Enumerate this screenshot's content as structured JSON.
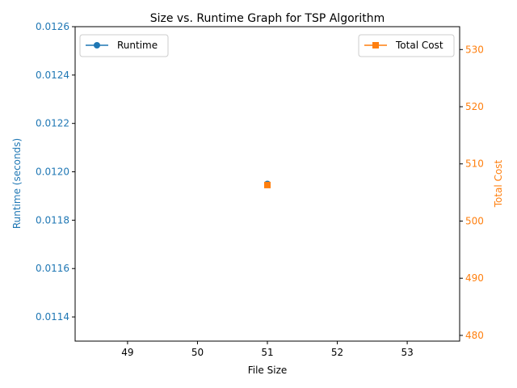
{
  "chart_data": {
    "type": "line",
    "title": "Size vs. Runtime Graph for TSP Algorithm",
    "xlabel": "File Size",
    "ylabel_left": "Runtime (seconds)",
    "ylabel_right": "Total Cost",
    "x_ticks": [
      "49",
      "50",
      "51",
      "52",
      "53"
    ],
    "y_left_ticks": [
      "0.0114",
      "0.0116",
      "0.0118",
      "0.0120",
      "0.0122",
      "0.0124",
      "0.0126"
    ],
    "y_right_ticks": [
      "480",
      "490",
      "500",
      "510",
      "520",
      "530"
    ],
    "xlim": [
      48.25,
      53.75
    ],
    "ylim_left": [
      0.0113,
      0.0126
    ],
    "ylim_right": [
      479,
      534
    ],
    "grid": false,
    "series": [
      {
        "name": "Runtime",
        "axis": "left",
        "color": "#1f77b4",
        "marker": "circle",
        "legend_position": "upper-left",
        "points": [
          {
            "x": 51,
            "y": 0.01195
          }
        ]
      },
      {
        "name": "Total Cost",
        "axis": "right",
        "color": "#ff7f0e",
        "marker": "square",
        "legend_position": "upper-right",
        "points": [
          {
            "x": 51,
            "y": 506.3
          }
        ]
      }
    ],
    "colors": {
      "left_axis": "#1f77b4",
      "right_axis": "#ff7f0e",
      "text": "#000000"
    }
  }
}
